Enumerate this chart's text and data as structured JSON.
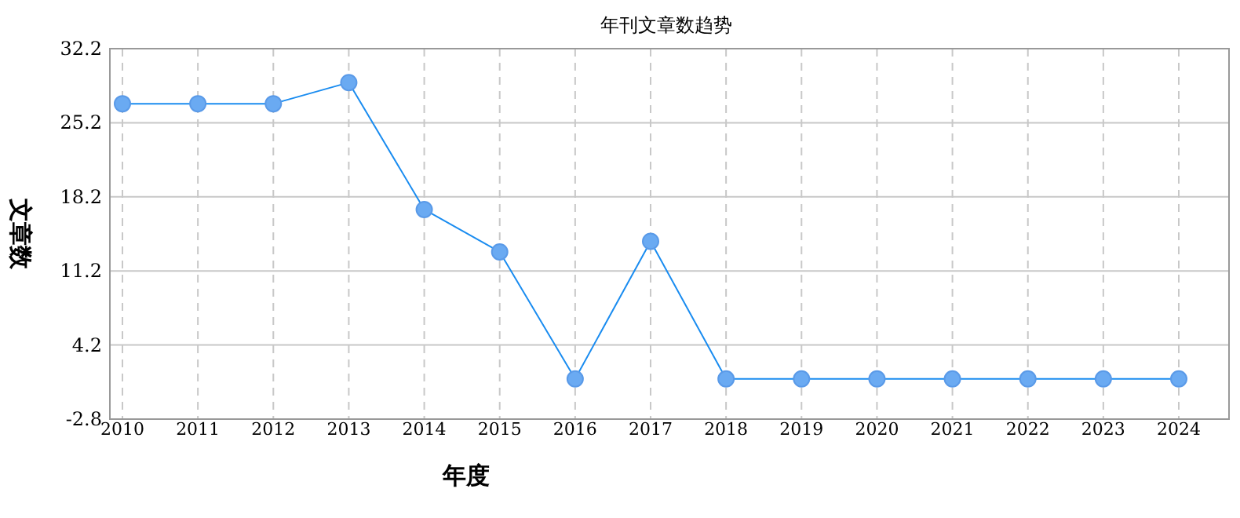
{
  "chart_data": {
    "type": "line",
    "title": "年刊文章数趋势",
    "xlabel": "年度",
    "ylabel": "文章数",
    "categories": [
      "2010",
      "2011",
      "2012",
      "2013",
      "2014",
      "2015",
      "2016",
      "2017",
      "2018",
      "2019",
      "2020",
      "2021",
      "2022",
      "2023",
      "2024"
    ],
    "series": [
      {
        "color": "#1a8cf0",
        "values": [
          27,
          27,
          27,
          29,
          17,
          13,
          1,
          14,
          1,
          1,
          1,
          1,
          1,
          1,
          1
        ]
      }
    ],
    "ylim": [
      -2.8,
      32.2
    ],
    "yticks": [
      -2.8,
      4.2,
      11.2,
      18.2,
      25.2,
      32.2
    ],
    "grid": true,
    "marker": "circle",
    "line_style": "solid"
  }
}
